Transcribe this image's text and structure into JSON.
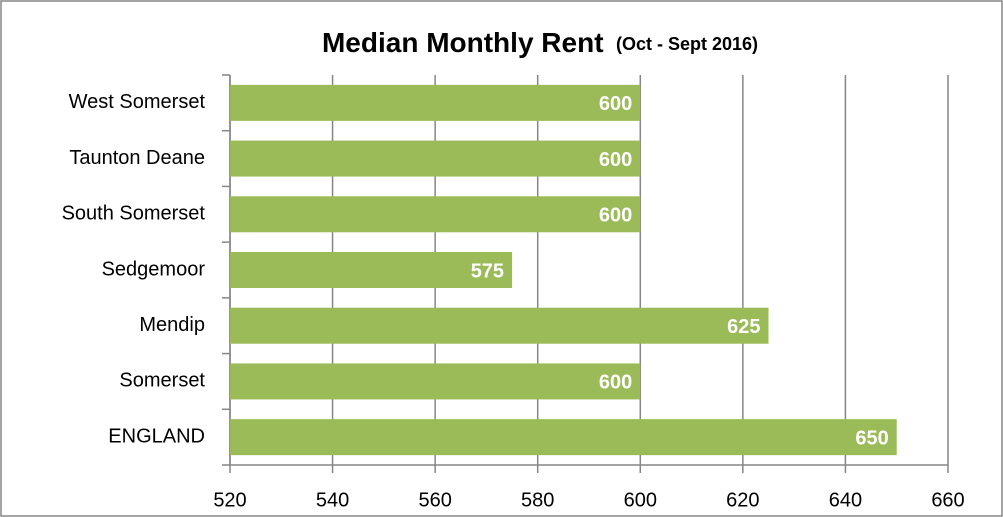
{
  "chart_data": {
    "type": "bar",
    "orientation": "horizontal",
    "title": "Median Monthly Rent",
    "subtitle": "(Oct - Sept 2016)",
    "categories": [
      "West Somerset",
      "Taunton Deane",
      "South Somerset",
      "Sedgemoor",
      "Mendip",
      "Somerset",
      "ENGLAND"
    ],
    "values": [
      600,
      600,
      600,
      575,
      625,
      600,
      650
    ],
    "color": "#9bbb59",
    "xlim": [
      520,
      660
    ],
    "xticks": [
      520,
      540,
      560,
      580,
      600,
      620,
      640,
      660
    ],
    "grid": true
  }
}
